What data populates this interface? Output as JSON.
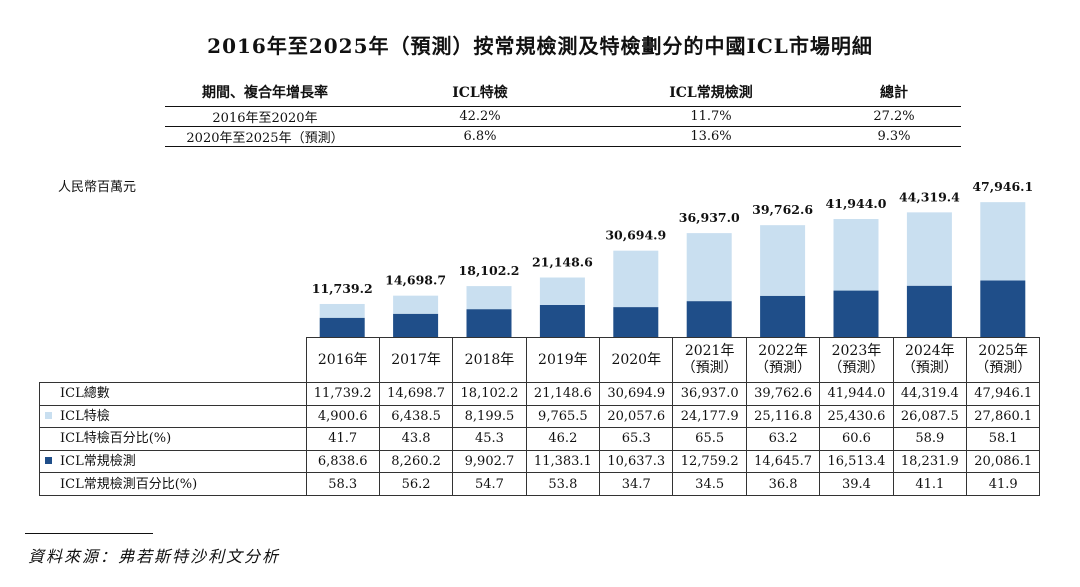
{
  "title": "2016年至2025年（預測）按常規檢測及特檢劃分的中國ICL市場明細",
  "cagr_table": {
    "headers": [
      "期間、複合年增長率",
      "ICL特檢",
      "ICL常規檢測",
      "總計"
    ],
    "rows": [
      [
        "2016年至2020年",
        "42.2%",
        "11.7%",
        "27.2%"
      ],
      [
        "2020年至2025年（預測）",
        "6.8%",
        "13.6%",
        "9.3%"
      ]
    ]
  },
  "unit_label": "人民幣百萬元",
  "colors": {
    "special": "#c9dff0",
    "routine": "#1f4e89"
  },
  "chart_data": {
    "type": "bar",
    "stacked": true,
    "title": "2016年至2025年（預測）按常規檢測及特檢劃分的中國ICL市場明細",
    "ylabel": "人民幣百萬元",
    "categories": [
      "2016年",
      "2017年",
      "2018年",
      "2019年",
      "2020年",
      "2021年",
      "2022年",
      "2023年",
      "2024年",
      "2025年"
    ],
    "category_notes": [
      "",
      "",
      "",
      "",
      "",
      "（預測）",
      "（預測）",
      "（預測）",
      "（預測）",
      "（預測）"
    ],
    "series": [
      {
        "name": "ICL常規檢測",
        "values": [
          6838.6,
          8260.2,
          9902.7,
          11383.1,
          10637.3,
          12759.2,
          14645.7,
          16513.4,
          18231.9,
          20086.1
        ]
      },
      {
        "name": "ICL特檢",
        "values": [
          4900.6,
          6438.5,
          8199.5,
          9765.5,
          20057.6,
          24177.9,
          25116.8,
          25430.6,
          26087.5,
          27860.1
        ]
      }
    ],
    "totals": [
      11739.2,
      14698.7,
      18102.2,
      21148.6,
      30694.9,
      36937.0,
      39762.6,
      41944.0,
      44319.4,
      47946.1
    ],
    "total_labels": [
      "11,739.2",
      "14,698.7",
      "18,102.2",
      "21,148.6",
      "30,694.9",
      "36,937.0",
      "39,762.6",
      "41,944.0",
      "44,319.4",
      "47,946.1"
    ],
    "ylim": [
      0,
      48000
    ]
  },
  "data_table": {
    "rows": [
      {
        "label": "ICL總數",
        "swatch": "",
        "values": [
          "11,739.2",
          "14,698.7",
          "18,102.2",
          "21,148.6",
          "30,694.9",
          "36,937.0",
          "39,762.6",
          "41,944.0",
          "44,319.4",
          "47,946.1"
        ]
      },
      {
        "label": "ICL特檢",
        "swatch": "special",
        "values": [
          "4,900.6",
          "6,438.5",
          "8,199.5",
          "9,765.5",
          "20,057.6",
          "24,177.9",
          "25,116.8",
          "25,430.6",
          "26,087.5",
          "27,860.1"
        ]
      },
      {
        "label": "ICL特檢百分比(%)",
        "swatch": "",
        "values": [
          "41.7",
          "43.8",
          "45.3",
          "46.2",
          "65.3",
          "65.5",
          "63.2",
          "60.6",
          "58.9",
          "58.1"
        ]
      },
      {
        "label": "ICL常規檢測",
        "swatch": "routine",
        "values": [
          "6,838.6",
          "8,260.2",
          "9,902.7",
          "11,383.1",
          "10,637.3",
          "12,759.2",
          "14,645.7",
          "16,513.4",
          "18,231.9",
          "20,086.1"
        ]
      },
      {
        "label": "ICL常規檢測百分比(%)",
        "swatch": "",
        "values": [
          "58.3",
          "56.2",
          "54.7",
          "53.8",
          "34.7",
          "34.5",
          "36.8",
          "39.4",
          "41.1",
          "41.9"
        ]
      }
    ]
  },
  "source": "資料來源：弗若斯特沙利文分析"
}
